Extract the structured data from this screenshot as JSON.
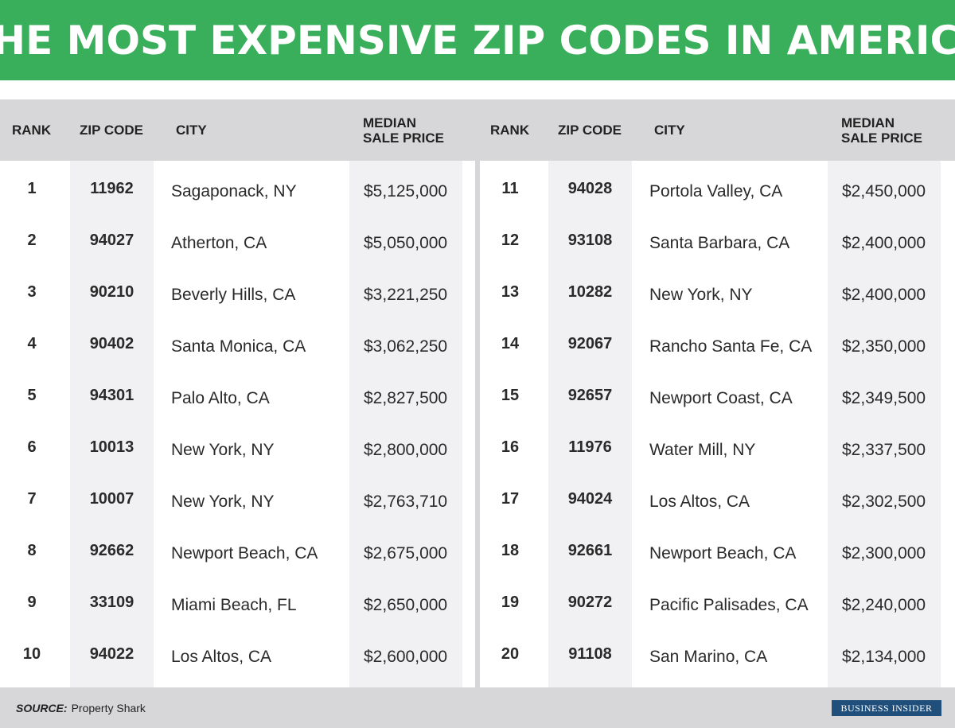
{
  "title": "THE MOST EXPENSIVE ZIP CODES IN AMERICA",
  "source_label": "SOURCE:",
  "source_value": "Property Shark",
  "logo": "BUSINESS INSIDER",
  "chart_data": {
    "type": "table",
    "columns": [
      "RANK",
      "ZIP CODE",
      "CITY",
      "MEDIAN\nSALE PRICE"
    ],
    "rows": [
      [
        "1",
        "11962",
        "Sagaponack, NY",
        "$5,125,000"
      ],
      [
        "2",
        "94027",
        "Atherton, CA",
        "$5,050,000"
      ],
      [
        "3",
        "90210",
        "Beverly Hills, CA",
        "$3,221,250"
      ],
      [
        "4",
        "90402",
        "Santa Monica, CA",
        "$3,062,250"
      ],
      [
        "5",
        "94301",
        "Palo Alto, CA",
        "$2,827,500"
      ],
      [
        "6",
        "10013",
        "New York, NY",
        "$2,800,000"
      ],
      [
        "7",
        "10007",
        "New York, NY",
        "$2,763,710"
      ],
      [
        "8",
        "92662",
        "Newport Beach, CA",
        "$2,675,000"
      ],
      [
        "9",
        "33109",
        "Miami Beach, FL",
        "$2,650,000"
      ],
      [
        "10",
        "94022",
        "Los Altos, CA",
        "$2,600,000"
      ],
      [
        "11",
        "94028",
        "Portola Valley, CA",
        "$2,450,000"
      ],
      [
        "12",
        "93108",
        "Santa Barbara, CA",
        "$2,400,000"
      ],
      [
        "13",
        "10282",
        "New York, NY",
        "$2,400,000"
      ],
      [
        "14",
        "92067",
        "Rancho Santa Fe, CA",
        "$2,350,000"
      ],
      [
        "15",
        "92657",
        "Newport Coast, CA",
        "$2,349,500"
      ],
      [
        "16",
        "11976",
        "Water Mill, NY",
        "$2,337,500"
      ],
      [
        "17",
        "94024",
        "Los Altos, CA",
        "$2,302,500"
      ],
      [
        "18",
        "92661",
        "Newport Beach, CA",
        "$2,300,000"
      ],
      [
        "19",
        "90272",
        "Pacific Palisades, CA",
        "$2,240,000"
      ],
      [
        "20",
        "91108",
        "San Marino, CA",
        "$2,134,000"
      ]
    ]
  },
  "colors": {
    "banner": "#3aaf5b",
    "header_band": "#d7d7d9",
    "shaded_column": "#f1f1f3",
    "logo_bg": "#1f4f7a"
  }
}
